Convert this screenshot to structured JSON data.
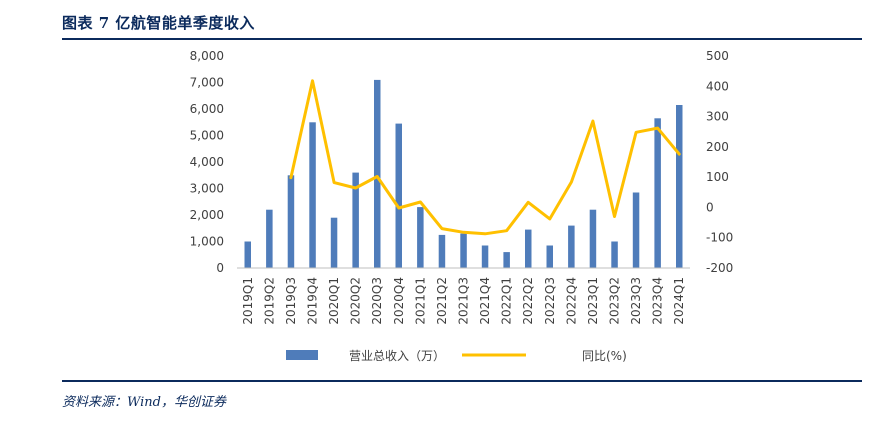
{
  "header": {
    "title": "图表 7  亿航智能单季度收入"
  },
  "footer": {
    "source": "资料来源：Wind，华创证券"
  },
  "colors": {
    "bar": "#4f7cba",
    "line": "#ffc000",
    "rule": "#0b2a5c",
    "text": "#404040"
  },
  "chart_data": {
    "type": "bar",
    "categories": [
      "2019Q1",
      "2019Q2",
      "2019Q3",
      "2019Q4",
      "2020Q1",
      "2020Q2",
      "2020Q3",
      "2020Q4",
      "2021Q1",
      "2021Q2",
      "2021Q3",
      "2021Q4",
      "2022Q1",
      "2022Q2",
      "2022Q3",
      "2022Q4",
      "2023Q1",
      "2023Q2",
      "2023Q3",
      "2023Q4",
      "2024Q1"
    ],
    "series": [
      {
        "name": "营业总收入（万）",
        "type": "bar",
        "axis": "left",
        "values": [
          1000,
          2200,
          3500,
          5500,
          1900,
          3600,
          7100,
          5450,
          2300,
          1250,
          1300,
          850,
          600,
          1450,
          850,
          1600,
          2200,
          1000,
          2850,
          5650,
          6150
        ]
      },
      {
        "name": "同比(%)",
        "type": "line",
        "axis": "right",
        "values": [
          null,
          null,
          98,
          418,
          82,
          64,
          102,
          -2,
          18,
          -70,
          -82,
          -87,
          -77,
          17,
          -38,
          84,
          285,
          -30,
          248,
          262,
          176
        ]
      }
    ],
    "ylim_left": [
      0,
      8000
    ],
    "ylim_right": [
      -200,
      500
    ],
    "yticks_left": [
      "0",
      "1,000",
      "2,000",
      "3,000",
      "4,000",
      "5,000",
      "6,000",
      "7,000",
      "8,000"
    ],
    "yticks_right": [
      "-200",
      "-100",
      "0",
      "100",
      "200",
      "300",
      "400",
      "500"
    ],
    "legend": "bottom",
    "grid": false
  }
}
